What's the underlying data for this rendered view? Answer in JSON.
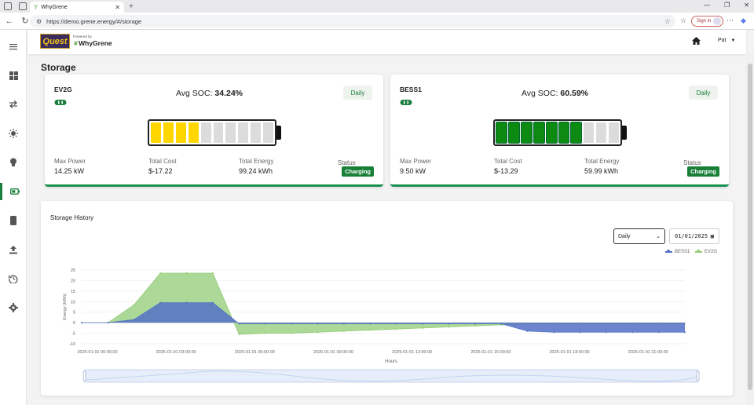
{
  "browser": {
    "tab_title": "WhyGrene",
    "url": "https://demo.grene.energy/#/storage",
    "signin_label": "Sign in"
  },
  "header": {
    "logo_text": "Quest",
    "powered_by": "Powered by",
    "brand": "WhyGrene",
    "user": "Pat"
  },
  "page": {
    "title": "Storage"
  },
  "cards": [
    {
      "name": "EV2G",
      "soc_label": "Avg SOC:",
      "soc_value": "34.24%",
      "period": "Daily",
      "fill_cells": 4,
      "total_cells": 10,
      "fill_color": "#ffd600",
      "max_power_label": "Max Power",
      "max_power": "14.25 kW",
      "total_cost_label": "Total Cost",
      "total_cost": "$-17.22",
      "total_energy_label": "Total Energy",
      "total_energy": "99.24 kWh",
      "status_label": "Status",
      "status": "Charging"
    },
    {
      "name": "BESS1",
      "soc_label": "Avg SOC:",
      "soc_value": "60.59%",
      "period": "Daily",
      "fill_cells": 7,
      "total_cells": 10,
      "fill_color": "#0d8a12",
      "max_power_label": "Max Power",
      "max_power": "9.50 kW",
      "total_cost_label": "Total Cost",
      "total_cost": "$-13.29",
      "total_energy_label": "Total Energy",
      "total_energy": "59.99 kWh",
      "status_label": "Status",
      "status": "Charging"
    }
  ],
  "history": {
    "title": "Storage History",
    "period_select": "Daily",
    "date_value": "01/01/2025"
  },
  "chart_data": {
    "type": "area",
    "xlabel": "Hours",
    "ylabel": "Energy (kWh)",
    "ylim": [
      -10,
      25
    ],
    "yticks": [
      -10,
      -5,
      0,
      5,
      10,
      15,
      20,
      25
    ],
    "xtick_labels": [
      "2025-01-01 00:00:00",
      "2025-01-01 03:00:00",
      "2025-01-01 06:00:00",
      "2025-01-01 09:00:00",
      "2025-01-01 12:00:00",
      "2025-01-01 15:00:00",
      "2025-01-01 18:00:00",
      "2025-01-01 21:00:00"
    ],
    "x": [
      0,
      1,
      2,
      3,
      4,
      5,
      6,
      7,
      8,
      9,
      10,
      11,
      12,
      13,
      14,
      15,
      16,
      17,
      18,
      19,
      20,
      21,
      22,
      23
    ],
    "legend_position": "top-right",
    "grid": true,
    "series": [
      {
        "name": "BESS1",
        "color": "#5470c6",
        "values": [
          0,
          0,
          1.5,
          9.5,
          9.5,
          9.5,
          -0.5,
          -0.5,
          -0.5,
          -0.5,
          -0.5,
          -0.5,
          -0.5,
          -0.5,
          -0.5,
          -0.5,
          -0.5,
          -4,
          -4.5,
          -4.5,
          -4.5,
          -4.5,
          -4.5,
          -4.5
        ]
      },
      {
        "name": "EV2G",
        "color": "#91cc75",
        "values": [
          0,
          0,
          8.5,
          23.5,
          23.5,
          23.5,
          -5.5,
          -5,
          -5,
          -4.5,
          -4,
          -3.5,
          -3,
          -2.5,
          -2,
          -1.5,
          -1,
          -0.5,
          -0.5,
          -0.5,
          -0.5,
          -0.5,
          -0.5,
          -0.5
        ]
      }
    ]
  }
}
